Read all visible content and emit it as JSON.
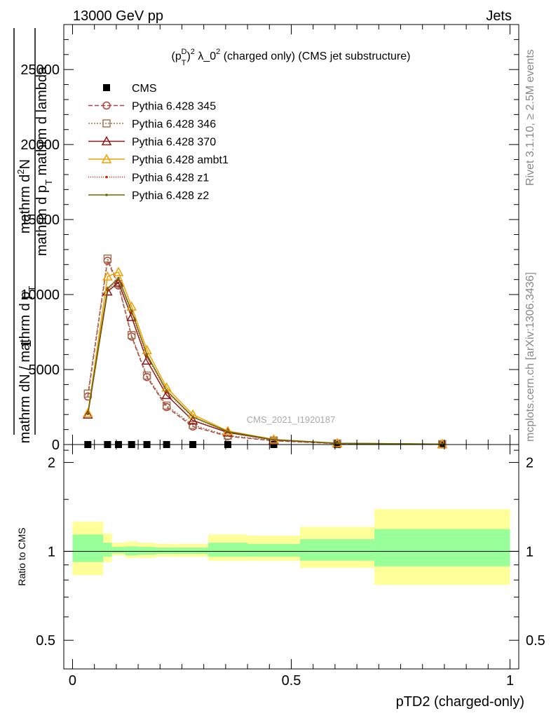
{
  "header": {
    "left": "13000 GeV pp",
    "right": "Jets"
  },
  "side_text": {
    "rivet": "Rivet 3.1.10, ≥ 2.5M events",
    "mcplots": "mcplots.cern.ch [arXiv:1306.3436]"
  },
  "watermark": "CMS_2021_I1920187",
  "chart_data": [
    {
      "type": "line",
      "title": "(p_T^D)^2 λ_0^2 (charged only) (CMS jet substructure)",
      "title_parts": {
        "a": "(p",
        "sup_d": "D",
        "sub_t": "T",
        "b": ")",
        "sup_2": "2",
        "c": " λ_0",
        "sup_2b": "2",
        "d": " (charged only) (CMS jet substructure)"
      },
      "ylabel_lines": [
        "1",
        "mathrm d^2N",
        "mathrm d p_T mathrm d lambda",
        "mathrm d N / mathrm d p_T"
      ],
      "ylabel_display": {
        "num_small": "1",
        "den_small": "mathrm dN / mathrm d p",
        "num_big": "mathrm d",
        "num_big_b": "N",
        "sup2": "2",
        "den_big": "mathrm d p",
        "den_big_sub": "T",
        "den_big_b": " mathrm d lambda",
        "den_small_sub": "T"
      },
      "ylim": [
        0,
        28000
      ],
      "xlim": [
        -0.02,
        1.02
      ],
      "yticks": [
        0,
        5000,
        10000,
        15000,
        20000,
        25000
      ],
      "ytick_labels": [
        "0",
        "5000",
        "10000",
        "15000",
        "20000",
        "25000"
      ],
      "legend_position": "top-left",
      "x": [
        0.035,
        0.08,
        0.105,
        0.135,
        0.17,
        0.215,
        0.275,
        0.355,
        0.46,
        0.605,
        0.845
      ],
      "series": [
        {
          "name": "CMS",
          "color": "#000000",
          "style": "points",
          "values": [
            0,
            0,
            0,
            0,
            0,
            0,
            0,
            0,
            0,
            0,
            0
          ]
        },
        {
          "name": "Pythia 6.428 345",
          "color": "#b04040",
          "dash": "6,3",
          "marker": "circle",
          "values": [
            3200,
            12250,
            10600,
            7200,
            4500,
            2500,
            1200,
            550,
            250,
            60,
            20
          ]
        },
        {
          "name": "Pythia 6.428 346",
          "color": "#a07850",
          "dash": "2,2",
          "marker": "square",
          "values": [
            3400,
            12400,
            10700,
            7300,
            4600,
            2600,
            1300,
            600,
            270,
            70,
            25
          ]
        },
        {
          "name": "Pythia 6.428 370",
          "color": "#8b1a1a",
          "dash": "",
          "marker": "triangle",
          "values": [
            2000,
            10200,
            10800,
            8500,
            5600,
            3300,
            1600,
            800,
            310,
            80,
            25
          ]
        },
        {
          "name": "Pythia 6.428 ambt1",
          "color": "#f0a000",
          "dash": "",
          "marker": "triangle",
          "values": [
            2100,
            11200,
            11500,
            9200,
            6300,
            3800,
            2000,
            900,
            340,
            90,
            30
          ]
        },
        {
          "name": "Pythia 6.428 z1",
          "color": "#cc2200",
          "dash": "1,2",
          "marker": "dot",
          "values": [
            2050,
            10300,
            11000,
            8800,
            5900,
            3500,
            1800,
            850,
            320,
            85,
            28
          ]
        },
        {
          "name": "Pythia 6.428 z2",
          "color": "#6b6b00",
          "dash": "",
          "marker": "dot",
          "values": [
            2050,
            10400,
            11100,
            8900,
            6000,
            3600,
            1850,
            860,
            325,
            86,
            28
          ]
        }
      ]
    },
    {
      "type": "area",
      "ylabel": "Ratio to CMS",
      "ylim": [
        0.4,
        2.3
      ],
      "log_y": true,
      "yticks": [
        0.5,
        1,
        2
      ],
      "ytick_labels": [
        "0.5",
        "1",
        "2"
      ],
      "xlim": [
        -0.02,
        1.02
      ],
      "xticks": [
        0,
        0.5,
        1
      ],
      "xtick_labels": [
        "0",
        "0.5",
        "1"
      ],
      "xlabel": "pTD2 (charged-only)",
      "bands": {
        "edges": [
          0.0,
          0.07,
          0.09,
          0.12,
          0.15,
          0.19,
          0.24,
          0.31,
          0.4,
          0.52,
          0.69,
          1.0
        ],
        "yellow_lo": [
          0.83,
          0.92,
          0.97,
          0.95,
          0.95,
          0.96,
          0.96,
          0.93,
          0.93,
          0.88,
          0.77
        ],
        "yellow_hi": [
          1.26,
          1.15,
          1.07,
          1.08,
          1.07,
          1.06,
          1.06,
          1.14,
          1.13,
          1.21,
          1.39
        ],
        "green_lo": [
          0.92,
          0.96,
          0.985,
          0.97,
          0.975,
          0.98,
          0.98,
          0.96,
          0.96,
          0.93,
          0.89
        ],
        "green_hi": [
          1.14,
          1.07,
          1.035,
          1.04,
          1.035,
          1.03,
          1.03,
          1.07,
          1.06,
          1.1,
          1.19
        ],
        "yellow_color": "#ffff99",
        "green_color": "#99ff99"
      }
    }
  ]
}
